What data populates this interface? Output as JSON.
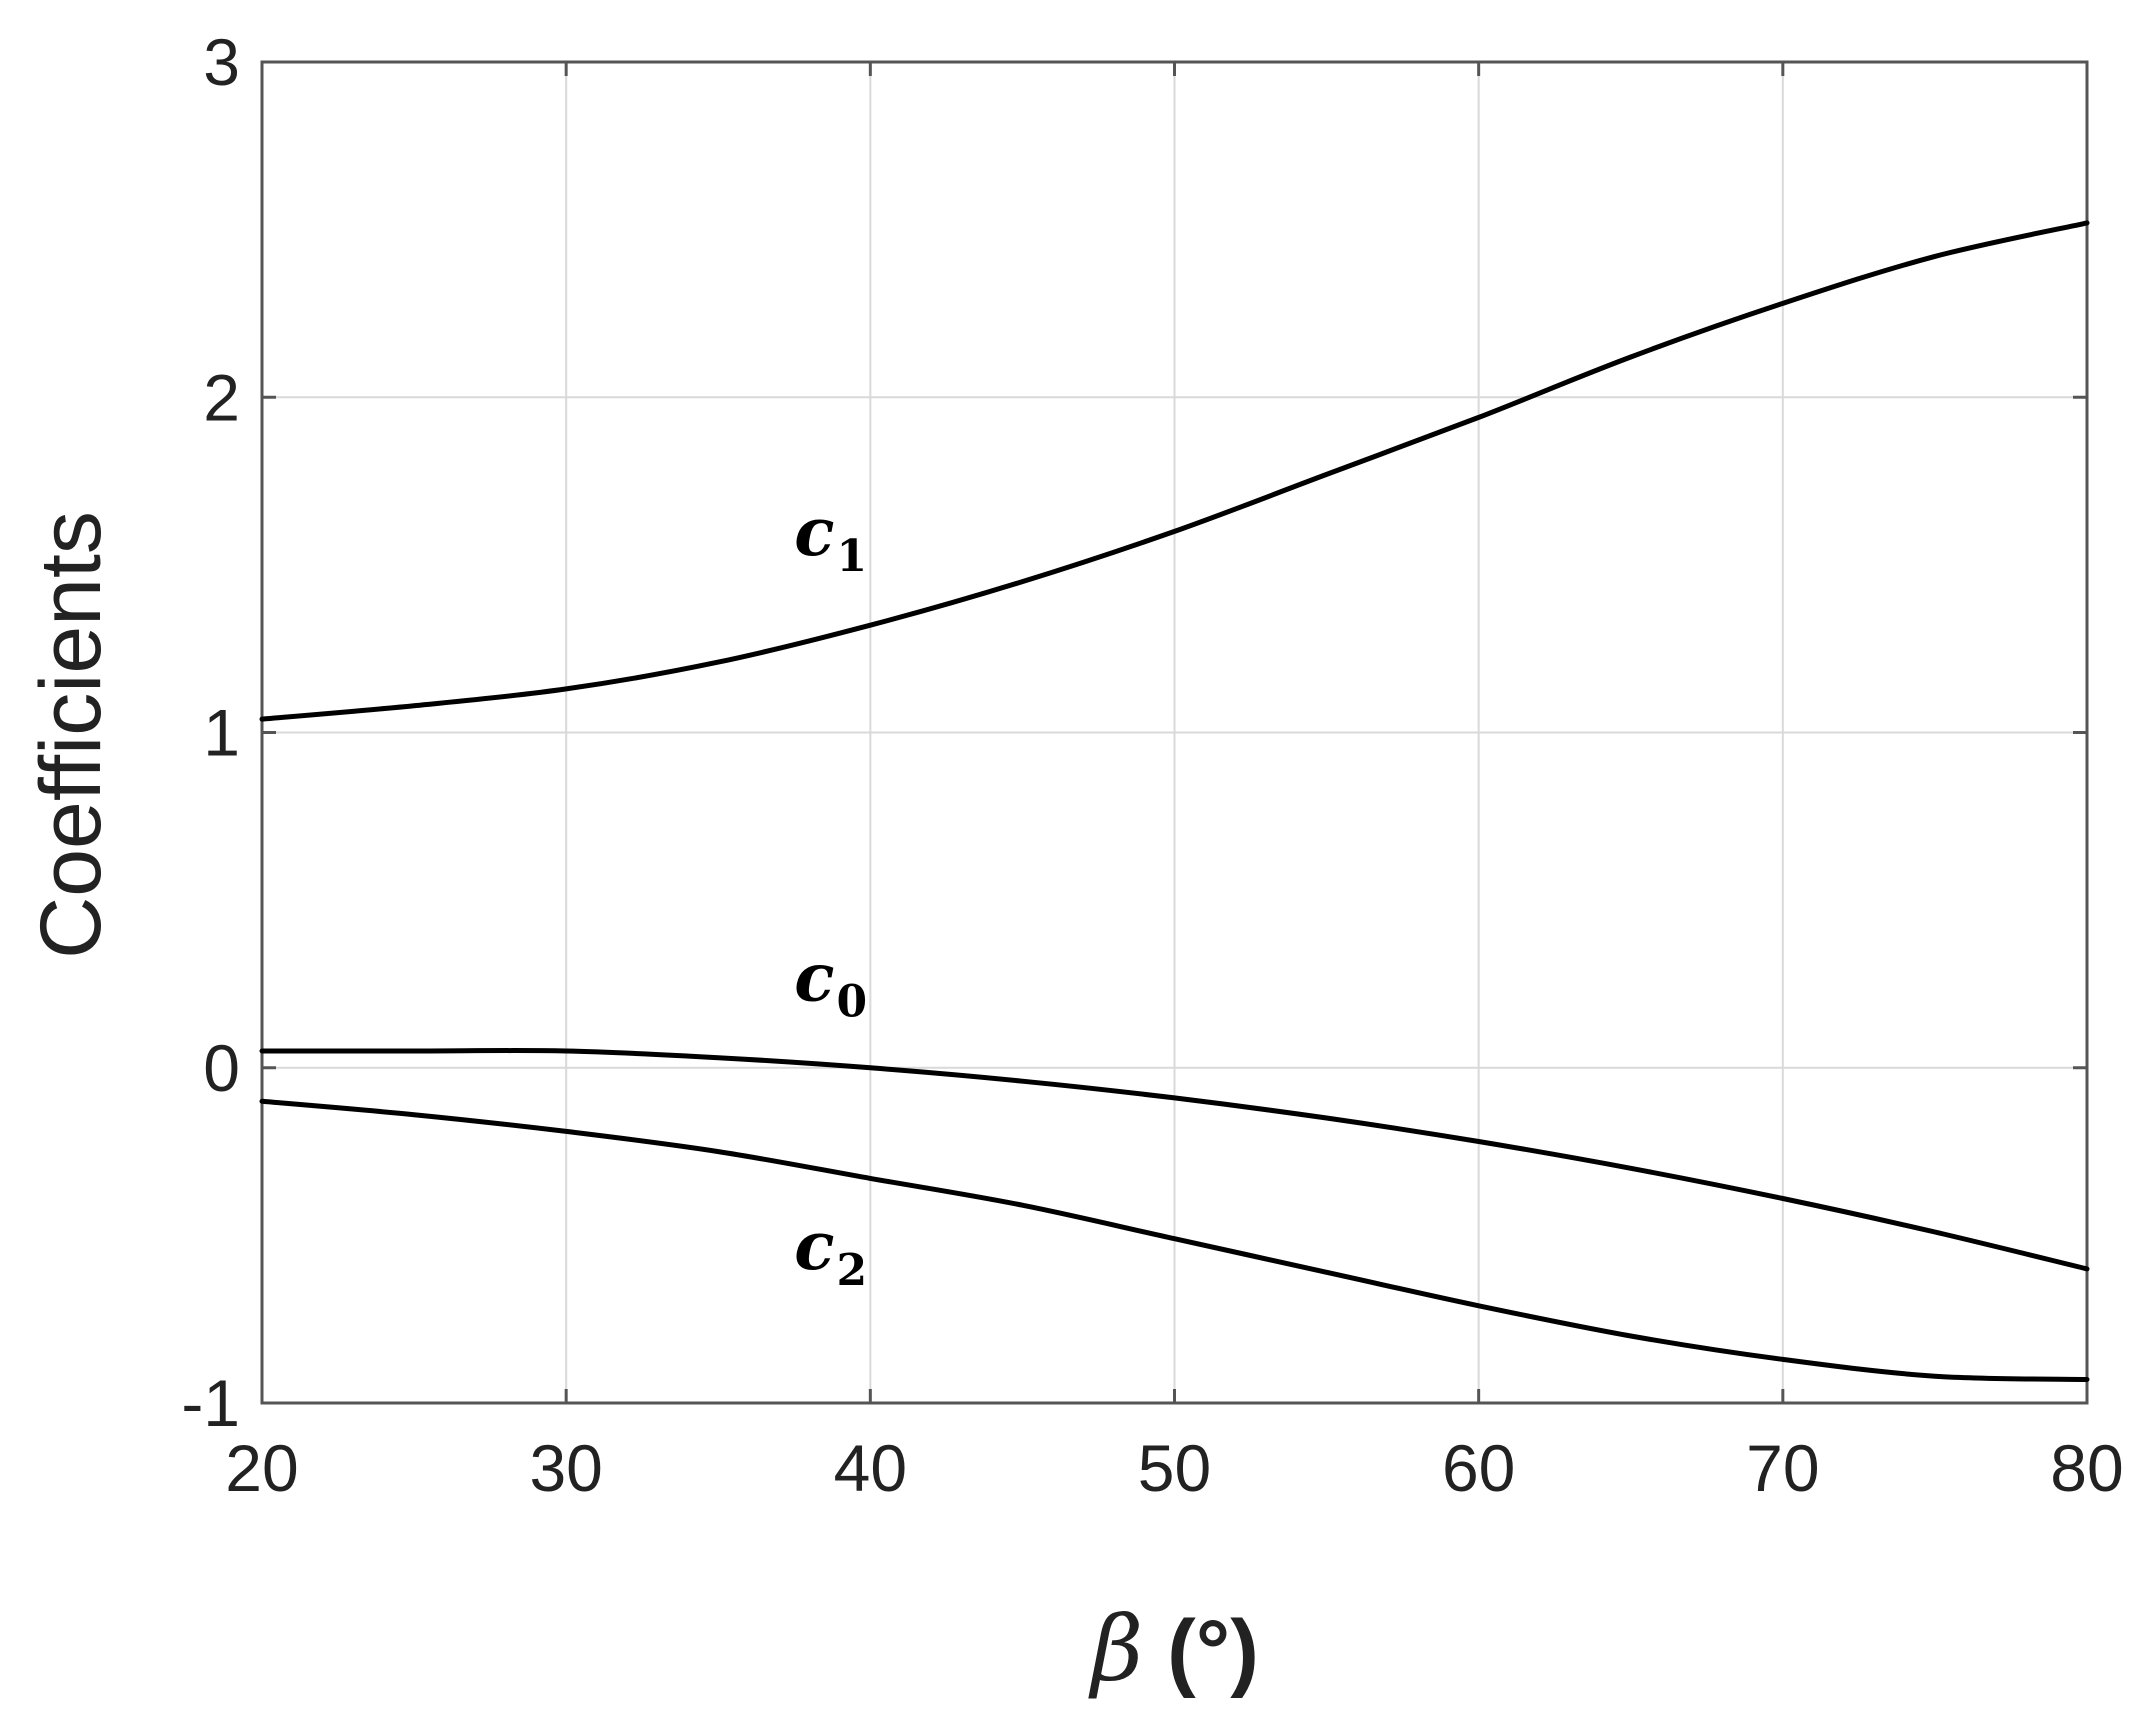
{
  "chart_data": {
    "type": "line",
    "title": "",
    "xlabel": "β (°)",
    "xlabel_symbol": "β",
    "xlabel_unit": "(°)",
    "ylabel": "Coefficients",
    "xlim": [
      20,
      80
    ],
    "ylim": [
      -1,
      3
    ],
    "xticks": [
      20,
      30,
      40,
      50,
      60,
      70,
      80
    ],
    "yticks": [
      -1,
      0,
      1,
      2,
      3
    ],
    "grid": true,
    "legend": "inline labels",
    "line_color": "#000000",
    "series": [
      {
        "label": "c",
        "subscript": "1",
        "label_at": [
          37.5,
          1.53
        ],
        "x": [
          20,
          25,
          30,
          35,
          40,
          45,
          50,
          55,
          60,
          65,
          70,
          75,
          80
        ],
        "y": [
          1.04,
          1.08,
          1.13,
          1.21,
          1.32,
          1.45,
          1.6,
          1.77,
          1.94,
          2.12,
          2.28,
          2.42,
          2.52
        ]
      },
      {
        "label": "c",
        "subscript": "0",
        "label_at": [
          37.5,
          0.2
        ],
        "x": [
          20,
          25,
          30,
          35,
          40,
          45,
          50,
          55,
          60,
          65,
          70,
          75,
          80
        ],
        "y": [
          0.05,
          0.05,
          0.05,
          0.03,
          0.0,
          -0.04,
          -0.09,
          -0.15,
          -0.22,
          -0.3,
          -0.39,
          -0.49,
          -0.6
        ]
      },
      {
        "label": "c",
        "subscript": "2",
        "label_at": [
          37.5,
          -0.6
        ],
        "x": [
          20,
          25,
          30,
          35,
          40,
          45,
          50,
          55,
          60,
          65,
          70,
          75,
          80
        ],
        "y": [
          -0.1,
          -0.14,
          -0.19,
          -0.25,
          -0.33,
          -0.41,
          -0.51,
          -0.61,
          -0.71,
          -0.8,
          -0.87,
          -0.92,
          -0.93
        ]
      }
    ]
  }
}
